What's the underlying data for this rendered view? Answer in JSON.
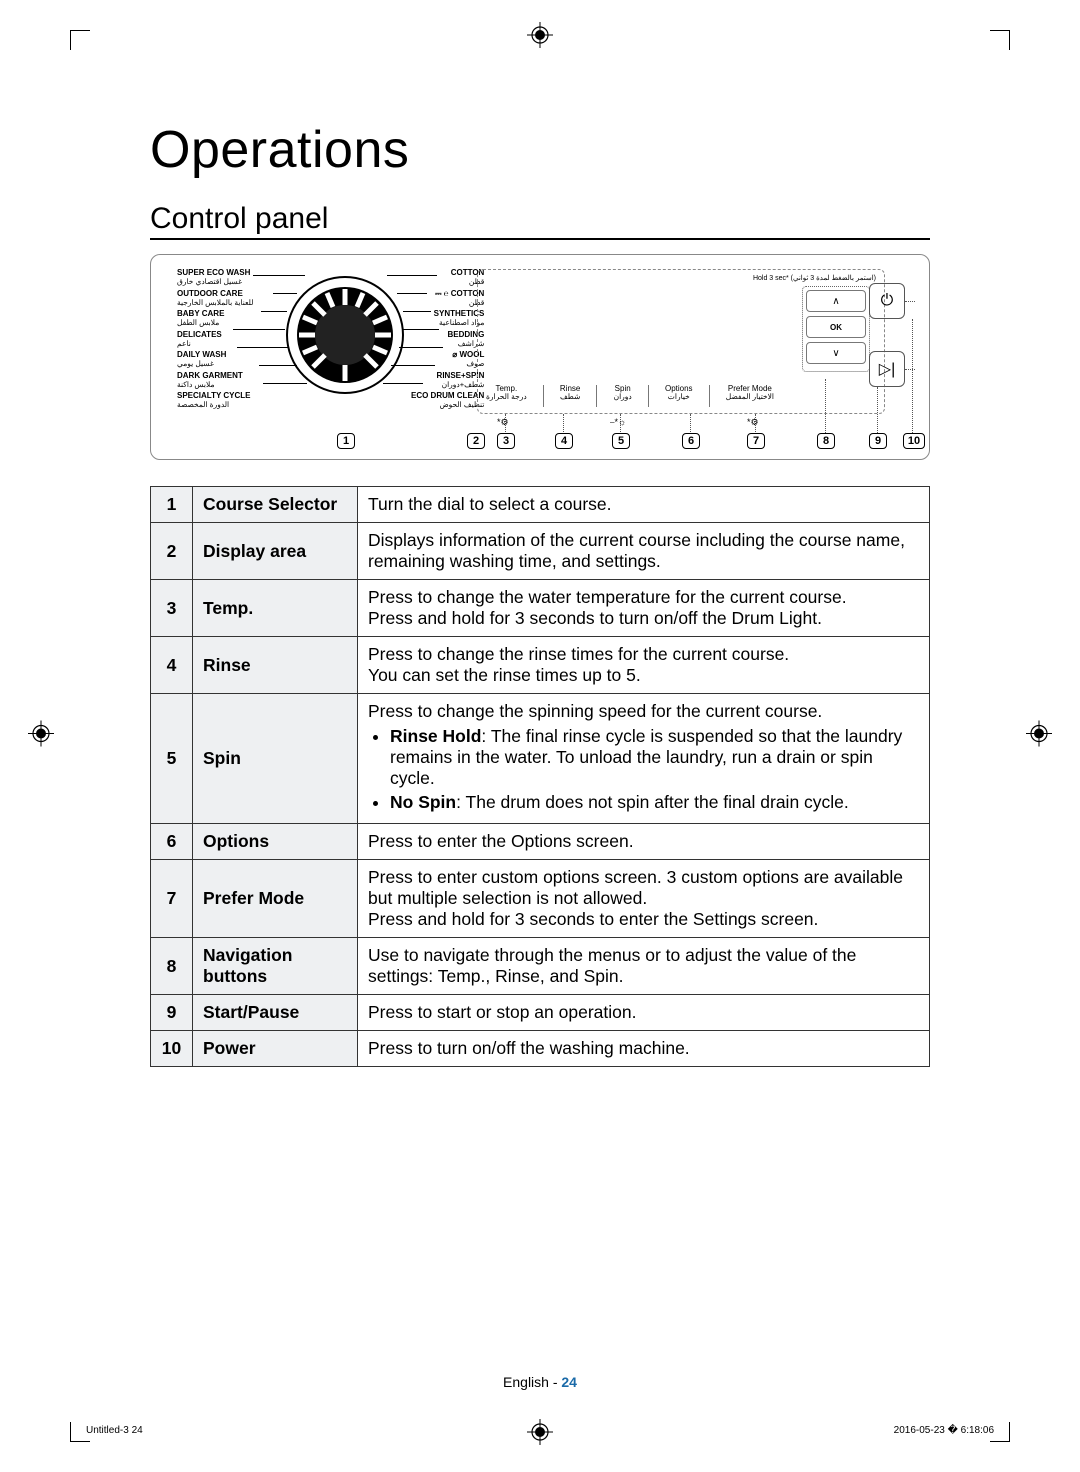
{
  "title": "Operations",
  "subtitle": "Control panel",
  "panel": {
    "hold_label": "(استمر بالضغط لمدة 3 ثواني) *Hold 3 sec",
    "left_programs": [
      {
        "en": "SUPER ECO WASH",
        "ar": "غسيل اقتصادي خارق"
      },
      {
        "en": "OUTDOOR CARE",
        "ar": "للعناية بالملابس الخارجية"
      },
      {
        "en": "BABY CARE",
        "ar": "ملابس الطفل"
      },
      {
        "en": "DELICATES",
        "ar": "ناعم"
      },
      {
        "en": "DAILY WASH",
        "ar": "غسيل يومي"
      },
      {
        "en": "DARK GARMENT",
        "ar": "ملابس داكنة"
      },
      {
        "en": "SPECIALTY CYCLE",
        "ar": "الدورة المخصصة"
      }
    ],
    "right_programs": [
      {
        "en": "COTTON",
        "ar": "قطن"
      },
      {
        "en": "⎓ ℮ COTTON",
        "ar": "قطن"
      },
      {
        "en": "SYNTHETICS",
        "ar": "مواد اصطناعية"
      },
      {
        "en": "BEDDING",
        "ar": "شراشف"
      },
      {
        "en": "⌀ WOOL",
        "ar": "صوف"
      },
      {
        "en": "RINSE+SPIN",
        "ar": "شطف+دوران"
      },
      {
        "en": "ECO DRUM CLEAN",
        "ar": "تنظيف الحوض"
      }
    ],
    "buttons": [
      {
        "en": "Temp.",
        "ar": "درجة الحرارة"
      },
      {
        "en": "Rinse",
        "ar": "شطف"
      },
      {
        "en": "Spin",
        "ar": "دوران"
      },
      {
        "en": "Options",
        "ar": "خيارات"
      },
      {
        "en": "Prefer Mode",
        "ar": "الاختيار المفضل"
      }
    ],
    "nav": {
      "up": "∧",
      "ok": "OK",
      "down": "∨"
    },
    "power_glyph": "⏻",
    "play_glyph": "▷|",
    "icon_glyphs": [
      "*⚙",
      "⎯*☼",
      "*⚙"
    ],
    "callouts": [
      "1",
      "2",
      "3",
      "4",
      "5",
      "6",
      "7",
      "8",
      "9",
      "10"
    ],
    "dial_colors": {
      "outer": "#000",
      "mid": "#000",
      "ticks": "#fff"
    }
  },
  "table": [
    {
      "n": "1",
      "name": "Course Selector",
      "desc_html": "Turn the dial to select a course."
    },
    {
      "n": "2",
      "name": "Display area",
      "desc_html": "Displays information of the current course including the course name, remaining washing time, and settings."
    },
    {
      "n": "3",
      "name": "Temp.",
      "desc_html": "Press to change the water temperature for the current course.<br>Press and hold for 3 seconds to turn on/off the Drum Light."
    },
    {
      "n": "4",
      "name": "Rinse",
      "desc_html": "Press to change the rinse times for the current course.<br>You can set the rinse times up to 5."
    },
    {
      "n": "5",
      "name": "Spin",
      "desc_html": "Press to change the spinning speed for the current course.<ul><li><b>Rinse Hold</b>: The final rinse cycle is suspended so that the laundry remains in the water. To unload the laundry, run a drain or spin cycle.</li><li><b>No Spin</b>: The drum does not spin after the final drain cycle.</li></ul>"
    },
    {
      "n": "6",
      "name": "Options",
      "desc_html": "Press to enter the Options screen."
    },
    {
      "n": "7",
      "name": "Prefer Mode",
      "desc_html": "Press to enter custom options screen. 3 custom options are available but multiple selection is not allowed.<br>Press and hold for 3 seconds to enter the Settings screen."
    },
    {
      "n": "8",
      "name": "Navigation buttons",
      "desc_html": "Use to navigate through the menus or to adjust the value of the settings: Temp., Rinse, and Spin."
    },
    {
      "n": "9",
      "name": "Start/Pause",
      "desc_html": "Press to start or stop an operation."
    },
    {
      "n": "10",
      "name": "Power",
      "desc_html": "Press to turn on/off the washing machine."
    }
  ],
  "footer": {
    "lang": "English - ",
    "page": "24",
    "left": "Untitled-3   24",
    "right": "2016-05-23   � 6:18:06"
  }
}
